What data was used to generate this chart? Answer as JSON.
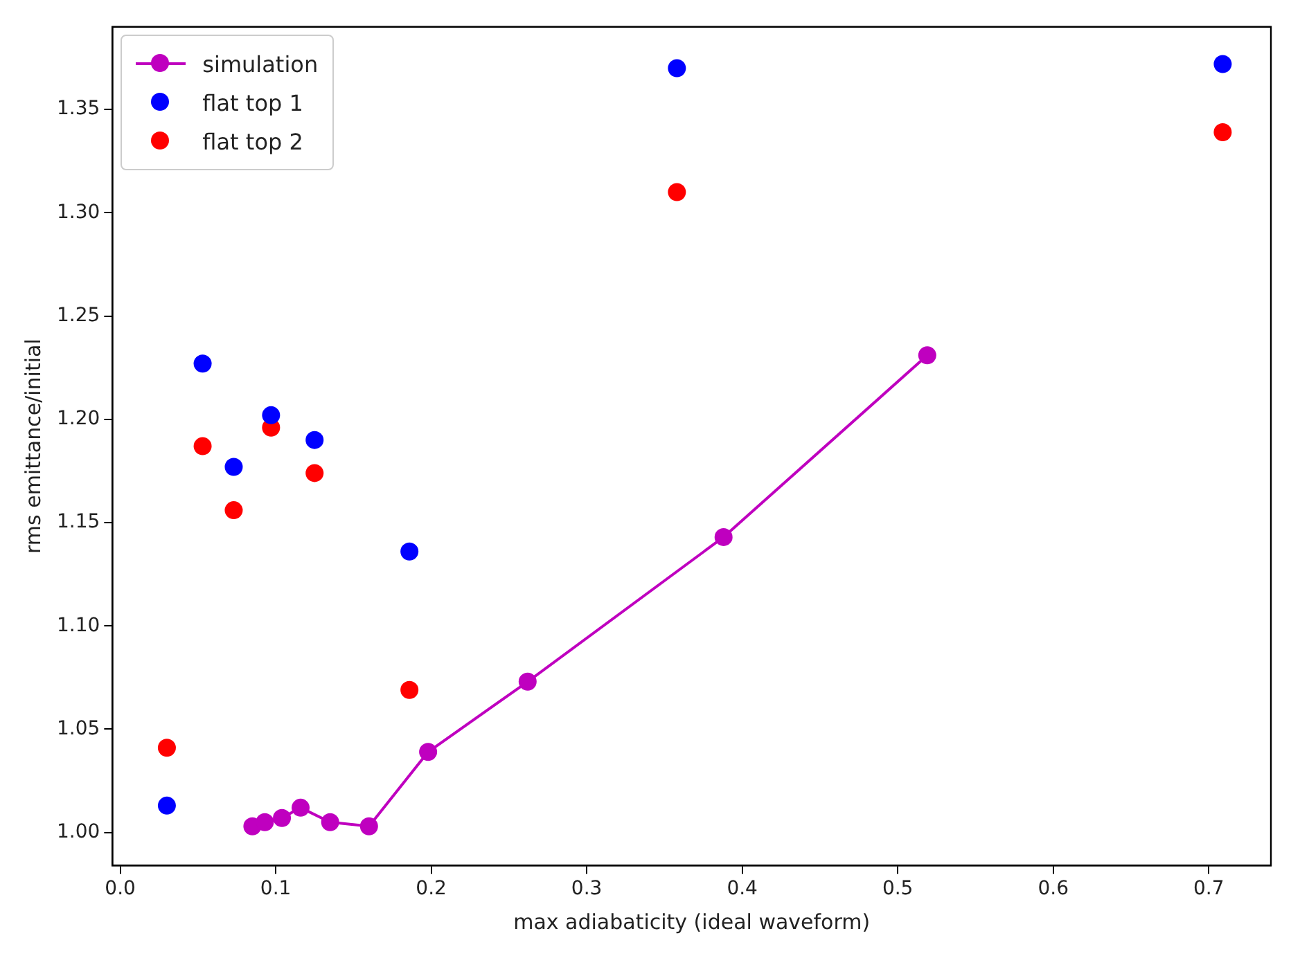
{
  "chart_data": {
    "type": "scatter",
    "xlabel": "max adiabaticity (ideal waveform)",
    "ylabel": "rms emittance/initial",
    "xlim": [
      -0.005,
      0.74
    ],
    "ylim": [
      0.984,
      1.39
    ],
    "xticks": [
      {
        "value": 0,
        "label": "0.0"
      },
      0.1,
      0.2,
      0.3,
      0.4,
      0.5,
      0.6,
      0.7
    ],
    "yticks": [
      {
        "value": 1,
        "label": "1.00"
      },
      1.05,
      {
        "value": 1.1,
        "label": "1.10"
      },
      1.15,
      {
        "value": 1.2,
        "label": "1.20"
      },
      1.25,
      {
        "value": 1.3,
        "label": "1.30"
      },
      1.35
    ],
    "grid": false,
    "legend": "top left",
    "marker": "circle",
    "series": [
      {
        "name": "simulation",
        "type": "line",
        "color": "#bf00bf",
        "x": [
          0.085,
          0.093,
          0.104,
          0.116,
          0.135,
          0.16,
          0.198,
          0.262,
          0.388,
          0.519
        ],
        "values": [
          1.003,
          1.005,
          1.007,
          1.012,
          1.005,
          1.003,
          1.039,
          1.073,
          1.143,
          1.231
        ]
      },
      {
        "name": "flat top 1",
        "color": "#0000ff",
        "x": [
          0.03,
          0.053,
          0.073,
          0.097,
          0.125,
          0.186,
          0.358,
          0.709
        ],
        "values": [
          1.013,
          1.227,
          1.177,
          1.202,
          1.19,
          1.136,
          1.37,
          1.372
        ]
      },
      {
        "name": "flat top 2",
        "color": "#ff0000",
        "x": [
          0.03,
          0.053,
          0.073,
          0.097,
          0.125,
          0.186,
          0.358,
          0.709
        ],
        "values": [
          1.041,
          1.187,
          1.156,
          1.196,
          1.174,
          1.069,
          1.31,
          1.339
        ]
      }
    ]
  }
}
